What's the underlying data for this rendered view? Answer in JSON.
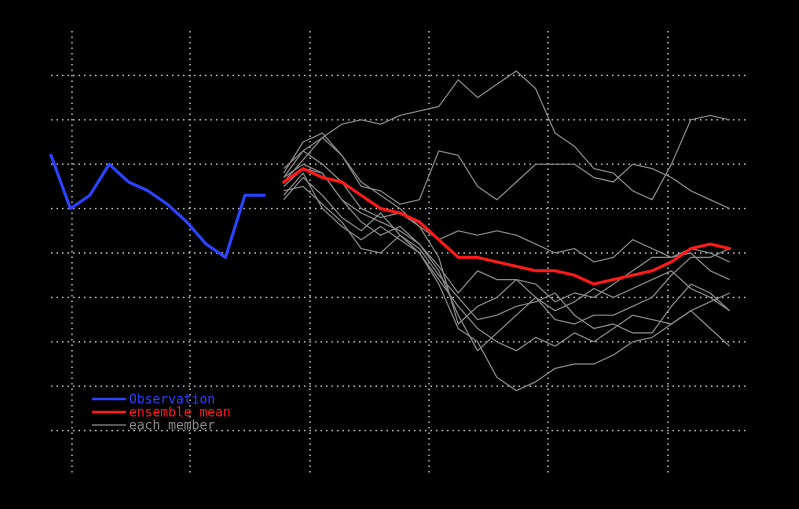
{
  "chart_data": {
    "type": "line",
    "title": "",
    "xlabel": "",
    "ylabel": "",
    "grid": true,
    "legend_position": "bottom-left",
    "xlim": [
      0,
      36
    ],
    "ylim": [
      0,
      10
    ],
    "legend": [
      {
        "label": "Observation",
        "color": "#2a44ff"
      },
      {
        "label": "ensemble mean",
        "color": "#ff1a1a"
      },
      {
        "label": "each member",
        "color": "#8c8c8c"
      }
    ],
    "series": [
      {
        "name": "Observation",
        "color": "#2a44ff",
        "x": [
          0,
          1,
          2,
          3,
          4,
          5,
          6,
          7,
          8,
          9,
          10,
          11
        ],
        "y": [
          7.2,
          6.0,
          6.3,
          7.0,
          6.6,
          6.4,
          6.1,
          5.7,
          5.2,
          4.9,
          6.3,
          6.3
        ]
      },
      {
        "name": "ensemble mean",
        "color": "#ff1a1a",
        "x": [
          12,
          13,
          14,
          15,
          16,
          17,
          18,
          19,
          20,
          21,
          22,
          23,
          24,
          25,
          26,
          27,
          28,
          29,
          30,
          31,
          32,
          33,
          34,
          35
        ],
        "y": [
          6.6,
          6.9,
          6.7,
          6.6,
          6.3,
          6.0,
          5.9,
          5.7,
          5.3,
          4.9,
          4.9,
          4.8,
          4.7,
          4.6,
          4.6,
          4.5,
          4.3,
          4.4,
          4.5,
          4.6,
          4.8,
          5.1,
          5.2,
          5.1
        ]
      }
    ],
    "members": [
      {
        "x": [
          12,
          13,
          14,
          15,
          16,
          17,
          18,
          19,
          20,
          21,
          22,
          23,
          24,
          25,
          26,
          27,
          28,
          29,
          30,
          31,
          32,
          33,
          34,
          35
        ],
        "y": [
          6.7,
          7.3,
          7.6,
          7.9,
          8.0,
          7.9,
          8.1,
          8.2,
          8.3,
          8.9,
          8.5,
          8.8,
          9.1,
          8.7,
          7.7,
          7.4,
          6.9,
          6.8,
          6.4,
          6.2,
          7.0,
          8.0,
          8.1,
          8.0
        ]
      },
      {
        "x": [
          12,
          13,
          14,
          15,
          16,
          17,
          18,
          19,
          20,
          21,
          22,
          23,
          24,
          25,
          26,
          27,
          28,
          29,
          30,
          31,
          32,
          33,
          34,
          35
        ],
        "y": [
          6.8,
          7.5,
          7.7,
          7.2,
          6.5,
          6.4,
          6.1,
          6.2,
          7.3,
          7.2,
          6.5,
          6.2,
          6.6,
          7.0,
          7.0,
          7.0,
          6.7,
          6.6,
          7.0,
          6.9,
          6.7,
          6.4,
          6.2,
          6.0
        ]
      },
      {
        "x": [
          12,
          13,
          14,
          15,
          16,
          17,
          18,
          19,
          20,
          21,
          22,
          23,
          24,
          25,
          26,
          27,
          28,
          29,
          30,
          31,
          32,
          33,
          34,
          35
        ],
        "y": [
          6.6,
          7.1,
          7.6,
          7.2,
          6.6,
          6.3,
          6.0,
          5.6,
          5.3,
          5.5,
          5.4,
          5.5,
          5.4,
          5.2,
          5.0,
          5.1,
          4.8,
          4.9,
          5.3,
          5.1,
          4.9,
          5.0,
          4.6,
          4.4
        ]
      },
      {
        "x": [
          12,
          13,
          14,
          15,
          16,
          17,
          18,
          19,
          20,
          21,
          22,
          23,
          24,
          25,
          26,
          27,
          28,
          29,
          30,
          31,
          32,
          33,
          34,
          35
        ],
        "y": [
          6.7,
          7.0,
          6.8,
          6.2,
          5.7,
          5.4,
          5.6,
          5.2,
          4.7,
          4.1,
          4.6,
          4.4,
          4.4,
          4.3,
          3.9,
          4.1,
          4.0,
          4.3,
          4.6,
          4.9,
          4.9,
          5.1,
          5.0,
          4.8
        ]
      },
      {
        "x": [
          12,
          13,
          14,
          15,
          16,
          17,
          18,
          19,
          20,
          21,
          22,
          23,
          24,
          25,
          26,
          27,
          28,
          29,
          30,
          31,
          32,
          33,
          34,
          35
        ],
        "y": [
          6.9,
          7.3,
          7.0,
          6.6,
          6.0,
          5.8,
          5.9,
          5.6,
          4.9,
          3.4,
          3.8,
          4.0,
          4.4,
          4.0,
          3.7,
          3.9,
          4.2,
          4.0,
          4.2,
          4.4,
          4.6,
          4.2,
          4.0,
          3.7
        ]
      },
      {
        "x": [
          12,
          13,
          14,
          15,
          16,
          17,
          18,
          19,
          20,
          21,
          22,
          23,
          24,
          25,
          26,
          27,
          28,
          29,
          30,
          31,
          32,
          33,
          34,
          35
        ],
        "y": [
          6.5,
          6.9,
          6.8,
          6.2,
          5.9,
          5.7,
          5.5,
          5.2,
          4.6,
          3.6,
          2.8,
          3.2,
          3.6,
          4.0,
          3.5,
          3.4,
          3.6,
          3.6,
          3.8,
          4.0,
          4.5,
          4.9,
          4.9,
          5.1
        ]
      },
      {
        "x": [
          12,
          13,
          14,
          15,
          16,
          17,
          18,
          19,
          20,
          21,
          22,
          23,
          24,
          25,
          26,
          27,
          28,
          29,
          30,
          31,
          32,
          33,
          34,
          35
        ],
        "y": [
          6.2,
          6.7,
          6.3,
          5.8,
          5.5,
          5.9,
          5.4,
          5.0,
          4.3,
          3.3,
          3.0,
          2.2,
          1.9,
          2.1,
          2.4,
          2.5,
          2.5,
          2.7,
          3.0,
          3.1,
          3.4,
          3.7,
          3.9,
          4.1
        ]
      },
      {
        "x": [
          12,
          13,
          14,
          15,
          16,
          17,
          18,
          19,
          20,
          21,
          22,
          23,
          24,
          25,
          26,
          27,
          28,
          29,
          30,
          31,
          32,
          33,
          34,
          35
        ],
        "y": [
          6.4,
          6.5,
          6.1,
          5.7,
          5.1,
          5.0,
          5.4,
          5.1,
          4.5,
          4.0,
          3.5,
          3.6,
          3.8,
          3.9,
          4.1,
          3.6,
          3.3,
          3.4,
          3.2,
          3.2,
          3.8,
          4.3,
          4.1,
          3.7
        ]
      },
      {
        "x": [
          12,
          13,
          14,
          15,
          16,
          17,
          18,
          19,
          20,
          21,
          22,
          23,
          24,
          25,
          26,
          27,
          28,
          29,
          30,
          31,
          32,
          33,
          34,
          35
        ],
        "y": [
          6.3,
          6.8,
          6.0,
          5.6,
          5.3,
          5.6,
          5.3,
          5.0,
          4.4,
          3.8,
          3.3,
          3.0,
          2.8,
          3.1,
          2.9,
          3.2,
          3.0,
          3.3,
          3.6,
          3.5,
          3.4,
          3.7,
          3.3,
          2.9
        ]
      }
    ]
  },
  "colors": {
    "background": "#000000",
    "grid": "#c8c8c8",
    "member": "#8c8c8c",
    "observation": "#2a44ff",
    "mean": "#ff1a1a"
  }
}
